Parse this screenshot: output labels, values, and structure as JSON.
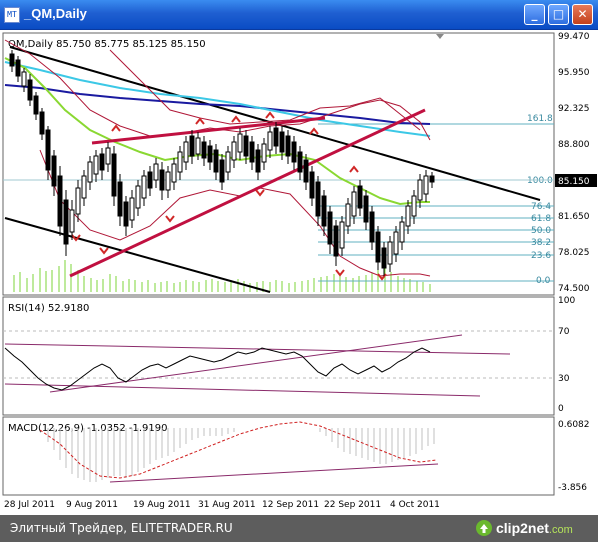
{
  "window": {
    "title": "_QM,Daily",
    "app_icon": "chart-window-icon",
    "buttons": {
      "minimize": "_",
      "maximize": "□",
      "close": "✕"
    }
  },
  "price_panel": {
    "header": "QM,Daily  85.750 85.775 85.125 85.150",
    "axis_labels": [
      "99.470",
      "95.950",
      "92.325",
      "88.800",
      "85.150",
      "81.650",
      "78.025",
      "74.500"
    ],
    "fibonacci_levels": [
      "161.8",
      "100.0",
      "76.4",
      "61.8",
      "50.0",
      "38.2",
      "23.6",
      "0.0"
    ],
    "current_price_label": "85.150"
  },
  "rsi_panel": {
    "header": "RSI(14) 52.9180",
    "axis_labels": [
      "100",
      "70",
      "30",
      "0"
    ]
  },
  "macd_panel": {
    "header": "MACD(12,26,9) -1.0352 -1.9190",
    "axis_labels": [
      "0.6082",
      "-3.856"
    ]
  },
  "time_axis": [
    "28 Jul 2011",
    "9 Aug 2011",
    "19 Aug 2011",
    "31 Aug 2011",
    "12 Sep 2011",
    "22 Sep 2011",
    "4 Oct 2011"
  ],
  "footer": {
    "text": "Элитный Трейдер, ELITETRADER.RU",
    "logo": "clip2net",
    "logo_tld": ".com"
  },
  "colors": {
    "titlebar": "#0a4cc4",
    "black_channel": "#000000",
    "blue_ma": "#1a1aa0",
    "cyan_ma": "#3cc8e6",
    "green_ma": "#8ad832",
    "red_line": "#c01040",
    "fib": "#60b0c0",
    "footer": "#5d5d5d"
  }
}
